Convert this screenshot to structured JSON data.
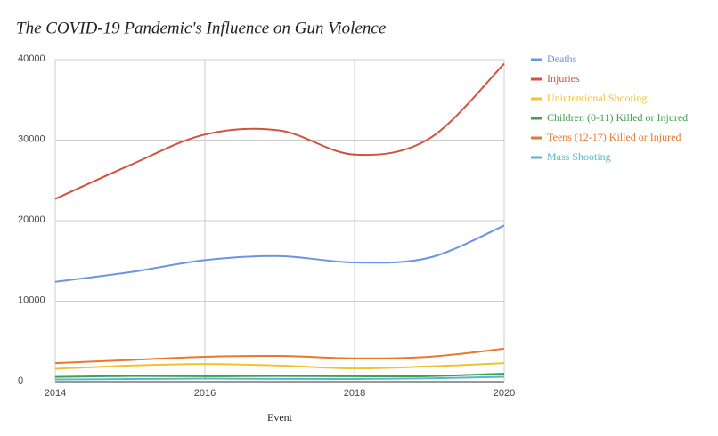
{
  "chart_data": {
    "type": "line",
    "title": "The COVID-19 Pandemic's Influence on Gun Violence",
    "x_label": "Event",
    "x": [
      2014,
      2015,
      2016,
      2017,
      2018,
      2019,
      2020
    ],
    "xlim": [
      2014,
      2020
    ],
    "xticks": [
      2014,
      2016,
      2018,
      2020
    ],
    "ylim": [
      0,
      40000
    ],
    "yticks": [
      0,
      10000,
      20000,
      30000,
      40000
    ],
    "grid": true,
    "smooth": true,
    "legend": "right",
    "series": [
      {
        "name": "Deaths",
        "color": "#6d93e3",
        "values": [
          12400,
          13600,
          15100,
          15600,
          14800,
          15400,
          19400
        ]
      },
      {
        "name": "Injuries",
        "color": "#d1523f",
        "values": [
          22700,
          26900,
          30700,
          31200,
          28200,
          30200,
          39500
        ]
      },
      {
        "name": "Unintentional Shooting",
        "color": "#f2c12e",
        "values": [
          1600,
          2000,
          2200,
          2000,
          1650,
          1900,
          2300
        ]
      },
      {
        "name": "Children (0-11) Killed or Injured",
        "color": "#43a04f",
        "values": [
          600,
          700,
          670,
          700,
          670,
          690,
          1000
        ]
      },
      {
        "name": "Teens (12-17) Killed or Injured",
        "color": "#e8792c",
        "values": [
          2300,
          2700,
          3100,
          3200,
          2900,
          3100,
          4100
        ]
      },
      {
        "name": "Mass Shooting",
        "color": "#56b8cc",
        "values": [
          270,
          330,
          380,
          350,
          330,
          420,
          610
        ]
      }
    ]
  }
}
